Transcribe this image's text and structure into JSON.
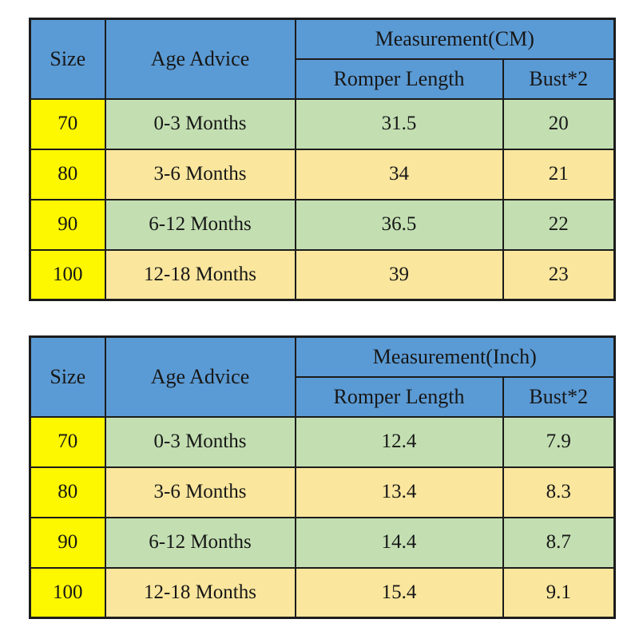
{
  "colors": {
    "header_blue": "#5b9bd5",
    "size_yellow": "#fdf700",
    "row_green": "#c3dfb2",
    "row_tan": "#fae69d",
    "border": "#1c1c1c",
    "text": "#171717"
  },
  "chart_data": [
    {
      "type": "table",
      "title": "Measurement(CM)",
      "columns": [
        "Size",
        "Age Advice",
        "Romper Length",
        "Bust*2"
      ],
      "headers": {
        "size": "Size",
        "age_advice": "Age Advice",
        "measurement": "Measurement(CM)",
        "romper_length": "Romper Length",
        "bust": "Bust*2"
      },
      "rows": [
        {
          "size": "70",
          "age": "0-3 Months",
          "romper": "31.5",
          "bust": "20"
        },
        {
          "size": "80",
          "age": "3-6 Months",
          "romper": "34",
          "bust": "21"
        },
        {
          "size": "90",
          "age": "6-12 Months",
          "romper": "36.5",
          "bust": "22"
        },
        {
          "size": "100",
          "age": "12-18 Months",
          "romper": "39",
          "bust": "23"
        }
      ]
    },
    {
      "type": "table",
      "title": "Measurement(Inch)",
      "columns": [
        "Size",
        "Age Advice",
        "Romper Length",
        "Bust*2"
      ],
      "headers": {
        "size": "Size",
        "age_advice": "Age Advice",
        "measurement": "Measurement(Inch)",
        "romper_length": "Romper Length",
        "bust": "Bust*2"
      },
      "rows": [
        {
          "size": "70",
          "age": "0-3 Months",
          "romper": "12.4",
          "bust": "7.9"
        },
        {
          "size": "80",
          "age": "3-6 Months",
          "romper": "13.4",
          "bust": "8.3"
        },
        {
          "size": "90",
          "age": "6-12 Months",
          "romper": "14.4",
          "bust": "8.7"
        },
        {
          "size": "100",
          "age": "12-18 Months",
          "romper": "15.4",
          "bust": "9.1"
        }
      ]
    }
  ]
}
